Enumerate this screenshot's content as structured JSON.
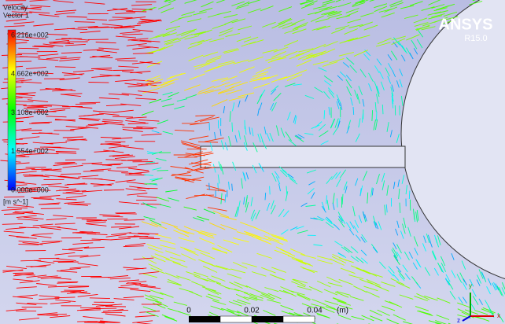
{
  "legend": {
    "title": "Velocity",
    "subtitle": "Vector 1",
    "labels": [
      "6.216e+002",
      "4.662e+002",
      "3.108e+002",
      "1.554e+002",
      "0.000e+000"
    ],
    "unit": "[m s^-1]"
  },
  "logo": {
    "name": "ANSYS",
    "version": "R15.0"
  },
  "scale_bar": {
    "labels": [
      "0",
      "0.02",
      "0.04"
    ],
    "unit": "(m)"
  },
  "triad": {
    "x": "x",
    "y": "y",
    "z": "z"
  }
}
